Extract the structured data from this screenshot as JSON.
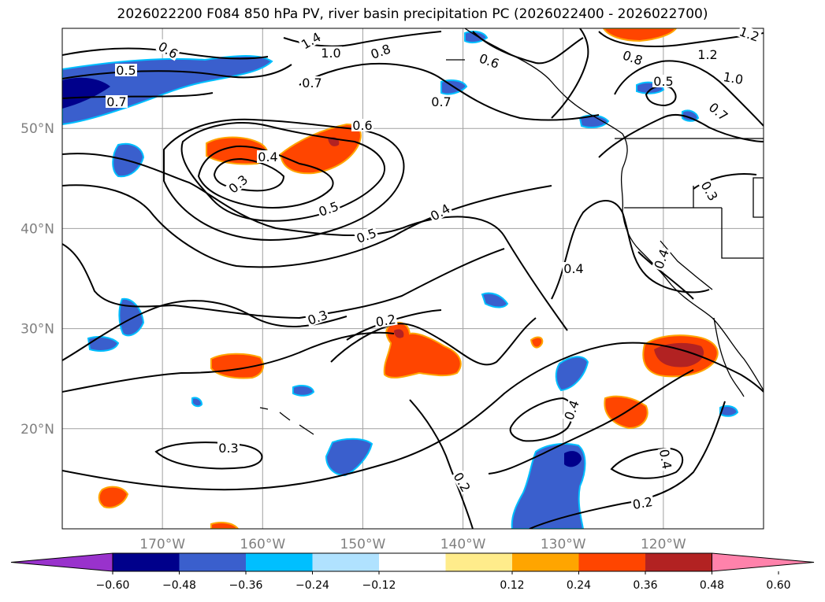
{
  "title": "2026022200 F084 850 hPa PV, river basin precipitation PC (2026022400 - 2026022700)",
  "map": {
    "lon_range": [
      -180,
      -110
    ],
    "lat_range": [
      10,
      60
    ],
    "lon_ticks": [
      "170°W",
      "160°W",
      "150°W",
      "140°W",
      "130°W",
      "120°W"
    ],
    "lat_ticks": [
      "50°N",
      "40°N",
      "30°N",
      "20°N"
    ],
    "grid": true,
    "contour_color": "#000000",
    "coastline_color": "#000000",
    "gridline_color": "#a0a0a0",
    "tick_label_color": "#808080"
  },
  "contour_labels": [
    {
      "text": "0.6"
    },
    {
      "text": "0.5"
    },
    {
      "text": "0.7"
    },
    {
      "text": "1.4"
    },
    {
      "text": "1.0"
    },
    {
      "text": "0.8"
    },
    {
      "text": "0.7"
    },
    {
      "text": "0.6"
    },
    {
      "text": "0.7"
    },
    {
      "text": "1.2"
    },
    {
      "text": "0.8"
    },
    {
      "text": "1.2"
    },
    {
      "text": "0.5"
    },
    {
      "text": "1.0"
    },
    {
      "text": "0.7"
    },
    {
      "text": "0.6"
    },
    {
      "text": "0.4"
    },
    {
      "text": "0.3"
    },
    {
      "text": "0.5"
    },
    {
      "text": "0.4"
    },
    {
      "text": "0.5"
    },
    {
      "text": "0.3"
    },
    {
      "text": "0.4"
    },
    {
      "text": "0.3"
    },
    {
      "text": "0.4"
    },
    {
      "text": "0.2"
    },
    {
      "text": "0.4"
    },
    {
      "text": "0.3"
    },
    {
      "text": "0.2"
    },
    {
      "text": "0.4"
    },
    {
      "text": "0.2"
    }
  ],
  "colorbar": {
    "ticks": [
      "−0.60",
      "−0.48",
      "−0.36",
      "−0.24",
      "−0.12",
      "0.12",
      "0.24",
      "0.36",
      "0.48",
      "0.60"
    ],
    "colors": [
      "#9932cc",
      "#00008b",
      "#3a5fcd",
      "#00bfff",
      "#b0e2ff",
      "#ffffff",
      "#ffec8b",
      "#ffa500",
      "#ff4500",
      "#b22222",
      "#ff82ab"
    ]
  }
}
